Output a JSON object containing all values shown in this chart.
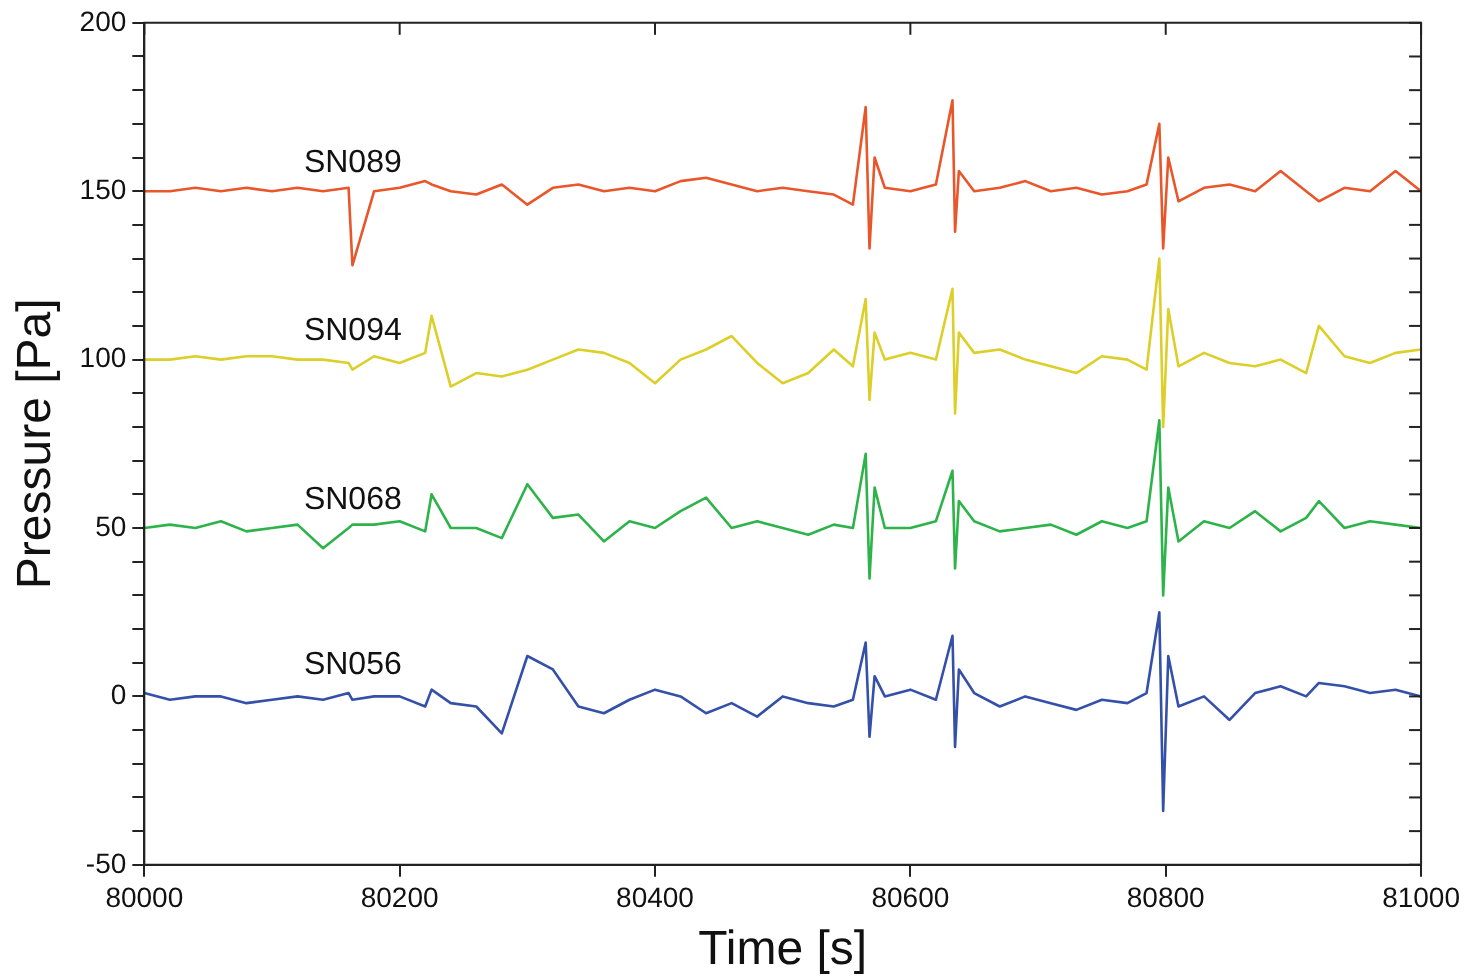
{
  "chart_data": {
    "type": "line",
    "xlabel": "Time [s]",
    "ylabel": "Pressure [Pa]",
    "x": [
      80000,
      80020,
      80040,
      80060,
      80080,
      80100,
      80120,
      80140,
      80160,
      80163,
      80180,
      80200,
      80220,
      80225,
      80240,
      80260,
      80280,
      80300,
      80320,
      80340,
      80360,
      80380,
      80400,
      80420,
      80440,
      80460,
      80480,
      80500,
      80520,
      80540,
      80555,
      80565,
      80568,
      80572,
      80580,
      80600,
      80620,
      80633,
      80635,
      80638,
      80650,
      80670,
      80690,
      80710,
      80730,
      80750,
      80770,
      80785,
      80795,
      80798,
      80802,
      80810,
      80830,
      80850,
      80870,
      80890,
      80910,
      80920,
      80940,
      80960,
      80980,
      81000
    ],
    "series": [
      {
        "name": "SN089",
        "color": "#e8562a",
        "values": [
          150,
          150,
          151,
          150,
          151,
          150,
          151,
          150,
          151,
          128,
          150,
          151,
          153,
          152,
          150,
          149,
          152,
          146,
          151,
          152,
          150,
          151,
          150,
          153,
          154,
          152,
          150,
          151,
          150,
          149,
          146,
          175,
          133,
          160,
          151,
          150,
          152,
          177,
          138,
          156,
          150,
          151,
          153,
          150,
          151,
          149,
          150,
          152,
          170,
          133,
          160,
          147,
          151,
          152,
          150,
          156,
          150,
          147,
          151,
          150,
          156,
          150
        ]
      },
      {
        "name": "SN094",
        "color": "#dccf2a",
        "values": [
          100,
          100,
          101,
          100,
          101,
          101,
          100,
          100,
          99,
          97,
          101,
          99,
          102,
          113,
          92,
          96,
          95,
          97,
          100,
          103,
          102,
          99,
          93,
          100,
          103,
          107,
          99,
          93,
          96,
          103,
          98,
          118,
          88,
          108,
          100,
          102,
          100,
          121,
          84,
          108,
          102,
          103,
          100,
          98,
          96,
          101,
          100,
          97,
          130,
          80,
          115,
          98,
          102,
          99,
          98,
          100,
          96,
          110,
          101,
          99,
          102,
          103
        ]
      },
      {
        "name": "SN068",
        "color": "#2db34a",
        "values": [
          50,
          51,
          50,
          52,
          49,
          50,
          51,
          44,
          50,
          51,
          51,
          52,
          49,
          60,
          50,
          50,
          47,
          63,
          53,
          54,
          46,
          52,
          50,
          55,
          59,
          50,
          52,
          50,
          48,
          51,
          50,
          72,
          35,
          62,
          50,
          50,
          52,
          67,
          38,
          58,
          52,
          49,
          50,
          51,
          48,
          52,
          50,
          52,
          82,
          30,
          62,
          46,
          52,
          50,
          55,
          49,
          53,
          58,
          50,
          52,
          51,
          50
        ]
      },
      {
        "name": "SN056",
        "color": "#3550a8",
        "values": [
          1,
          -1,
          0,
          0,
          -2,
          -1,
          0,
          -1,
          1,
          -1,
          0,
          0,
          -3,
          2,
          -2,
          -3,
          -11,
          12,
          8,
          -3,
          -5,
          -1,
          2,
          0,
          -5,
          -2,
          -6,
          0,
          -2,
          -3,
          -1,
          16,
          -12,
          6,
          0,
          2,
          -1,
          18,
          -15,
          8,
          1,
          -3,
          0,
          -2,
          -4,
          -1,
          -2,
          1,
          25,
          -34,
          12,
          -3,
          0,
          -7,
          1,
          3,
          0,
          4,
          3,
          1,
          2,
          0
        ]
      }
    ],
    "xlim": [
      80000,
      81000
    ],
    "xticks": [
      80000,
      80200,
      80400,
      80600,
      80800,
      81000
    ],
    "ylim": [
      -50,
      200
    ],
    "yticks": [
      -50,
      {
        "value": -40,
        "label": null
      },
      {
        "value": -30,
        "label": null
      },
      {
        "value": -20,
        "label": null
      },
      {
        "value": -10,
        "label": null
      },
      0,
      {
        "value": 10,
        "label": null
      },
      {
        "value": 20,
        "label": null
      },
      {
        "value": 30,
        "label": null
      },
      {
        "value": 40,
        "label": null
      },
      50,
      {
        "value": 60,
        "label": null
      },
      {
        "value": 70,
        "label": null
      },
      {
        "value": 80,
        "label": null
      },
      {
        "value": 90,
        "label": null
      },
      100,
      {
        "value": 110,
        "label": null
      },
      {
        "value": 120,
        "label": null
      },
      {
        "value": 130,
        "label": null
      },
      {
        "value": 140,
        "label": null
      },
      150,
      {
        "value": 160,
        "label": null
      },
      {
        "value": 170,
        "label": null
      },
      {
        "value": 180,
        "label": null
      },
      {
        "value": 190,
        "label": null
      },
      200
    ],
    "grid": false,
    "legend": false,
    "marker": "none",
    "line_style": "solid"
  }
}
